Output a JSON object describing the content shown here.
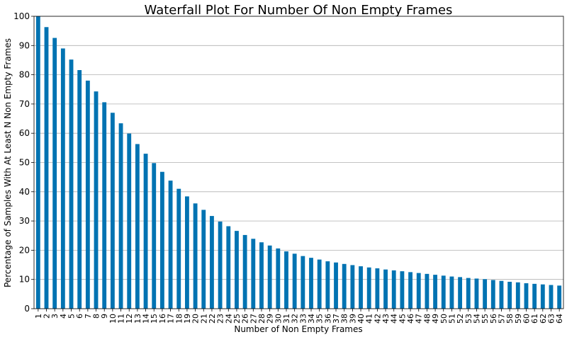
{
  "chart_data": {
    "type": "bar",
    "title": "Waterfall Plot For Number Of Non Empty Frames",
    "xlabel": "Number of Non Empty Frames",
    "ylabel": "Percentage of Samples With At Least N Non Empty Frames",
    "ylim": [
      0,
      100
    ],
    "yticks": [
      0,
      10,
      20,
      30,
      40,
      50,
      60,
      70,
      80,
      90,
      100
    ],
    "grid": "horizontal",
    "bar_color": "#0173b2",
    "categories": [
      "1",
      "2",
      "3",
      "4",
      "5",
      "6",
      "7",
      "8",
      "9",
      "10",
      "11",
      "12",
      "13",
      "14",
      "15",
      "16",
      "17",
      "18",
      "19",
      "20",
      "21",
      "22",
      "23",
      "24",
      "25",
      "26",
      "27",
      "28",
      "29",
      "30",
      "31",
      "32",
      "33",
      "34",
      "35",
      "36",
      "37",
      "38",
      "39",
      "40",
      "41",
      "42",
      "43",
      "44",
      "45",
      "46",
      "47",
      "48",
      "49",
      "50",
      "51",
      "52",
      "53",
      "54",
      "55",
      "56",
      "57",
      "58",
      "59",
      "60",
      "61",
      "62",
      "63",
      "64"
    ],
    "values": [
      100,
      96.3,
      92.6,
      89.0,
      85.2,
      81.6,
      78.0,
      74.3,
      70.6,
      67.0,
      63.4,
      59.9,
      56.3,
      53.0,
      49.8,
      46.8,
      43.8,
      41.0,
      38.4,
      36.0,
      33.8,
      31.7,
      29.8,
      28.2,
      26.6,
      25.2,
      23.9,
      22.7,
      21.6,
      20.6,
      19.6,
      18.8,
      18.0,
      17.4,
      16.8,
      16.2,
      15.8,
      15.3,
      14.9,
      14.5,
      14.1,
      13.8,
      13.4,
      13.1,
      12.8,
      12.5,
      12.2,
      11.9,
      11.6,
      11.3,
      11.0,
      10.8,
      10.5,
      10.3,
      10.1,
      9.8,
      9.5,
      9.2,
      9.0,
      8.7,
      8.5,
      8.3,
      8.1,
      7.9
    ]
  }
}
